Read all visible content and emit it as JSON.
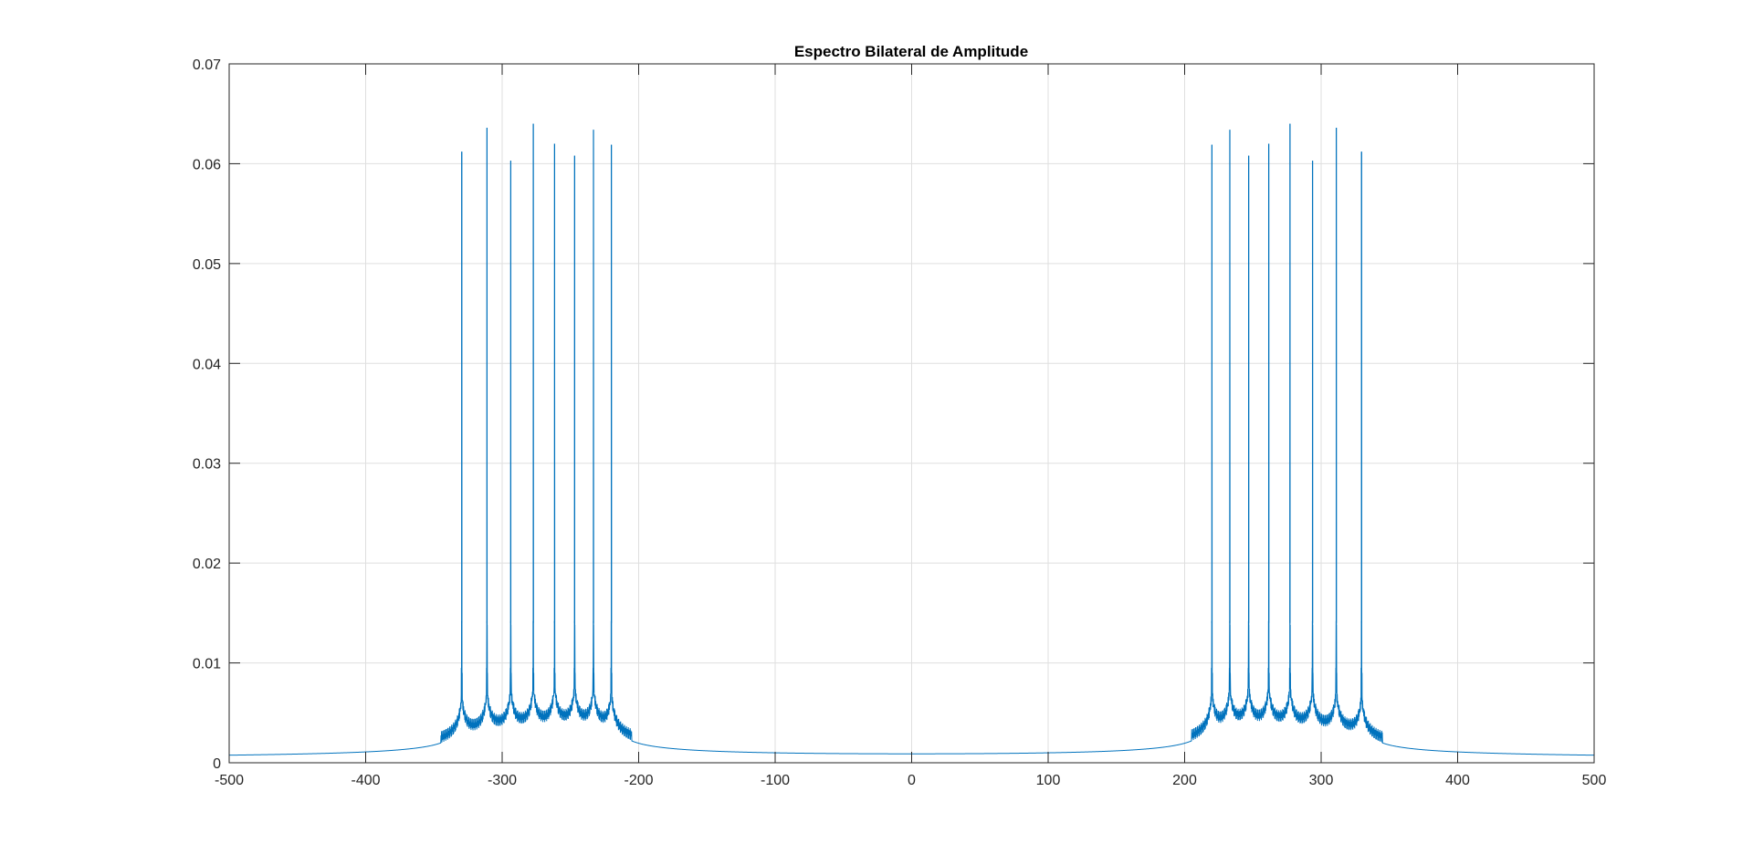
{
  "chart_data": {
    "type": "line",
    "title": "Espectro Bilateral de Amplitude",
    "xlabel": "",
    "ylabel": "",
    "xlim": [
      -500,
      500
    ],
    "ylim": [
      0,
      0.07
    ],
    "xticks": [
      -500,
      -400,
      -300,
      -200,
      -100,
      0,
      100,
      200,
      300,
      400,
      500
    ],
    "xtick_labels": [
      "-500",
      "-400",
      "-300",
      "-200",
      "-100",
      "0",
      "100",
      "200",
      "300",
      "400",
      "500"
    ],
    "yticks": [
      0,
      0.01,
      0.02,
      0.03,
      0.04,
      0.05,
      0.06,
      0.07
    ],
    "ytick_labels": [
      "0",
      "0.01",
      "0.02",
      "0.03",
      "0.04",
      "0.05",
      "0.06",
      "0.07"
    ],
    "grid": true,
    "series": [
      {
        "color": "#0072BD",
        "peaks": [
          {
            "x": -329.6,
            "y": 0.0612
          },
          {
            "x": -311.1,
            "y": 0.0636
          },
          {
            "x": -293.7,
            "y": 0.0603
          },
          {
            "x": -277.2,
            "y": 0.064
          },
          {
            "x": -261.6,
            "y": 0.062
          },
          {
            "x": -246.9,
            "y": 0.0608
          },
          {
            "x": -233.1,
            "y": 0.0634
          },
          {
            "x": -220.0,
            "y": 0.0619
          },
          {
            "x": 220.0,
            "y": 0.0619
          },
          {
            "x": 233.1,
            "y": 0.0634
          },
          {
            "x": 246.9,
            "y": 0.0608
          },
          {
            "x": 261.6,
            "y": 0.062
          },
          {
            "x": 277.2,
            "y": 0.064
          },
          {
            "x": 293.7,
            "y": 0.0603
          },
          {
            "x": 311.1,
            "y": 0.0636
          },
          {
            "x": 329.6,
            "y": 0.0612
          }
        ]
      }
    ]
  }
}
